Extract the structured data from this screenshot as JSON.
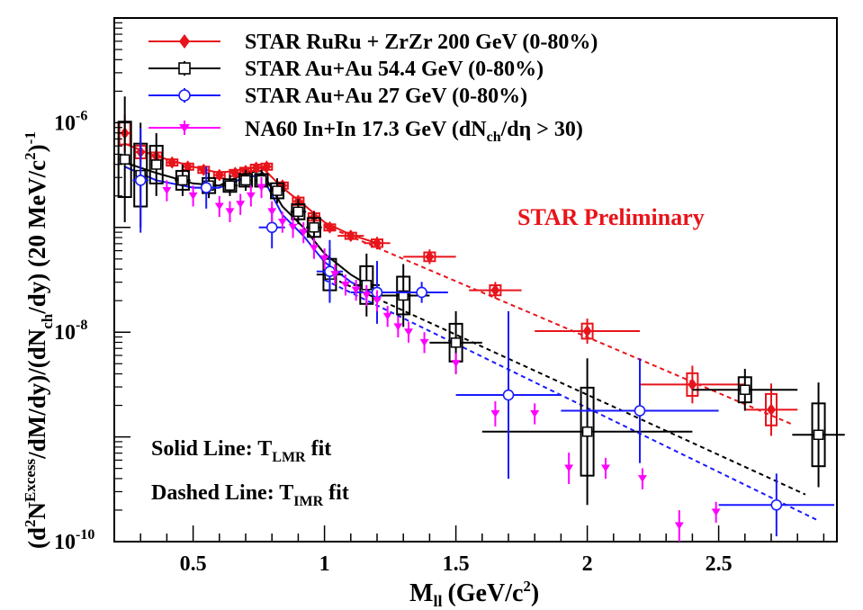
{
  "chart_data": {
    "type": "scatter",
    "xlabel_main": "M",
    "xlabel_sub": "ll",
    "xlabel_units": "(GeV/c",
    "xlabel_sup": "2",
    "xlabel_close": ")",
    "ylabel": {
      "p1": "(d",
      "s1": "2",
      "p2": "N",
      "s2": "Excess",
      "p3": "/dM/dy)/(dN",
      "sub": "ch",
      "p4": "/dy) (20 MeV/c",
      "s3": "2",
      "p5": ")",
      "s4": "-1"
    },
    "xlim": [
      0.2,
      2.95
    ],
    "ylim_log10": [
      -10,
      -5
    ],
    "x_ticks": [
      "0.5",
      "1",
      "1.5",
      "2",
      "2.5"
    ],
    "x_tick_values": [
      0.5,
      1,
      1.5,
      2,
      2.5
    ],
    "y_ticks": [
      {
        "value": -10,
        "base": "10",
        "exp": "-10"
      },
      {
        "value": -8,
        "base": "10",
        "exp": "-8"
      },
      {
        "value": -6,
        "base": "10",
        "exp": "-6"
      }
    ],
    "preliminary_label": "STAR Preliminary",
    "preliminary_color": "#e8141b",
    "annotations": [
      {
        "prefix": "Solid Line: T",
        "sub": "LMR",
        "suffix": " fit"
      },
      {
        "prefix": "Dashed Line: T",
        "sub": "IMR",
        "suffix": " fit"
      }
    ],
    "legend": [
      {
        "text": "STAR RuRu + ZrZr 200 GeV (0-80%)",
        "color": "#e8141b",
        "marker": "diamond"
      },
      {
        "text": "STAR Au+Au 54.4 GeV (0-80%)",
        "color": "#000000",
        "marker": "open-square"
      },
      {
        "text": "STAR Au+Au 27 GeV (0-80%)",
        "color": "#1a1aff",
        "marker": "open-circle"
      },
      {
        "text": "NA60 In+In 17.3 GeV (dN",
        "sub": "ch",
        "tail": "/dη > 30)",
        "color": "#ff00ff",
        "marker": "down-triangle"
      }
    ],
    "series": [
      {
        "name": "STAR RuRu + ZrZr 200 GeV (0-80%)",
        "color": "#e8141b",
        "marker": "diamond",
        "x": [
          0.24,
          0.3,
          0.36,
          0.42,
          0.48,
          0.54,
          0.6,
          0.66,
          0.7,
          0.74,
          0.78,
          0.84,
          0.9,
          0.96,
          1.02,
          1.1,
          1.2,
          1.4,
          1.65,
          2.0,
          2.4,
          2.7
        ],
        "y_log10": [
          -6.1,
          -6.28,
          -6.32,
          -6.38,
          -6.42,
          -6.45,
          -6.5,
          -6.48,
          -6.46,
          -6.43,
          -6.42,
          -6.6,
          -6.75,
          -6.9,
          -7.0,
          -7.08,
          -7.15,
          -7.28,
          -7.6,
          -7.99,
          -8.5,
          -8.74
        ],
        "xerr": [
          0.02,
          0.02,
          0.02,
          0.02,
          0.02,
          0.02,
          0.02,
          0.02,
          0.02,
          0.02,
          0.02,
          0.02,
          0.02,
          0.02,
          0.02,
          0.05,
          0.05,
          0.1,
          0.1,
          0.2,
          0.2,
          0.1
        ],
        "yerr_log10": [
          0.18,
          0.1,
          0.06,
          0.05,
          0.05,
          0.05,
          0.05,
          0.05,
          0.05,
          0.05,
          0.05,
          0.05,
          0.06,
          0.06,
          0.05,
          0.05,
          0.06,
          0.07,
          0.08,
          0.12,
          0.18,
          0.25
        ]
      },
      {
        "name": "STAR Au+Au 54.4 GeV (0-80%)",
        "color": "#000000",
        "marker": "open-square",
        "x": [
          0.24,
          0.3,
          0.36,
          0.46,
          0.56,
          0.64,
          0.7,
          0.76,
          0.82,
          0.9,
          0.96,
          1.02,
          1.16,
          1.3,
          1.5,
          2.0,
          2.6,
          2.88
        ],
        "y_log10": [
          -6.35,
          -6.5,
          -6.4,
          -6.55,
          -6.6,
          -6.6,
          -6.55,
          -6.55,
          -6.65,
          -6.85,
          -7.0,
          -7.45,
          -7.55,
          -7.65,
          -8.1,
          -8.95,
          -8.55,
          -8.98
        ],
        "xerr": [
          0.02,
          0.02,
          0.02,
          0.03,
          0.03,
          0.03,
          0.02,
          0.02,
          0.03,
          0.03,
          0.03,
          0.05,
          0.05,
          0.1,
          0.1,
          0.4,
          0.2,
          0.1
        ],
        "yerr_log10": [
          0.6,
          0.5,
          0.3,
          0.15,
          0.12,
          0.1,
          0.1,
          0.1,
          0.12,
          0.12,
          0.15,
          0.25,
          0.3,
          0.3,
          0.3,
          0.7,
          0.2,
          0.5
        ]
      },
      {
        "name": "STAR Au+Au 27 GeV (0-80%)",
        "color": "#1a1aff",
        "marker": "open-circle",
        "x": [
          0.3,
          0.55,
          0.8,
          1.02,
          1.2,
          1.37,
          1.7,
          2.2,
          2.72
        ],
        "y_log10": [
          -6.55,
          -6.62,
          -7.0,
          -7.42,
          -7.62,
          -7.62,
          -8.6,
          -8.75,
          -9.65
        ],
        "xerr": [
          0.03,
          0.05,
          0.05,
          0.05,
          0.1,
          0.1,
          0.2,
          0.3,
          0.22
        ],
        "yerr_log10": [
          0.5,
          0.2,
          0.2,
          0.3,
          0.3,
          0.1,
          0.8,
          0.5,
          0.3
        ]
      },
      {
        "name": "NA60 In+In 17.3 GeV (dNch/dη > 30)",
        "color": "#ff00ff",
        "marker": "down-triangle",
        "x": [
          0.4,
          0.5,
          0.6,
          0.64,
          0.68,
          0.72,
          0.76,
          0.8,
          0.84,
          0.88,
          0.92,
          0.96,
          1.0,
          1.04,
          1.08,
          1.12,
          1.16,
          1.2,
          1.24,
          1.28,
          1.32,
          1.38,
          1.5,
          1.65,
          1.8,
          1.93,
          2.07,
          2.21,
          2.35,
          2.49
        ],
        "y_log10": [
          -6.65,
          -6.7,
          -6.8,
          -6.85,
          -6.78,
          -6.7,
          -6.62,
          -6.85,
          -6.95,
          -7.0,
          -7.05,
          -7.2,
          -7.3,
          -7.45,
          -7.55,
          -7.6,
          -7.65,
          -7.7,
          -7.85,
          -7.95,
          -8.0,
          -8.1,
          -8.3,
          -8.78,
          -8.78,
          -9.3,
          -9.3,
          -9.4,
          -9.85,
          -9.72
        ],
        "yerr_log10": [
          0.1,
          0.1,
          0.1,
          0.1,
          0.1,
          0.1,
          0.1,
          0.1,
          0.1,
          0.1,
          0.1,
          0.1,
          0.1,
          0.1,
          0.1,
          0.1,
          0.1,
          0.1,
          0.1,
          0.1,
          0.1,
          0.1,
          0.1,
          0.12,
          0.1,
          0.15,
          0.1,
          0.1,
          0.15,
          0.1
        ]
      }
    ],
    "fit_lines": [
      {
        "style": "dashed",
        "color": "#e8141b",
        "x": [
          1.0,
          2.78
        ],
        "y_log10": [
          -6.98,
          -8.88
        ]
      },
      {
        "style": "dashed",
        "color": "#000000",
        "x": [
          1.0,
          2.83
        ],
        "y_log10": [
          -7.45,
          -9.55
        ]
      },
      {
        "style": "dashed",
        "color": "#1a1aff",
        "x": [
          1.0,
          2.88
        ],
        "y_log10": [
          -7.5,
          -9.8
        ]
      },
      {
        "style": "solid",
        "color": "#000000",
        "x": [
          0.24,
          0.36,
          0.5,
          0.6,
          0.7,
          0.76,
          0.84,
          0.92,
          1.0,
          1.1,
          1.2
        ],
        "y_log10": [
          -6.38,
          -6.48,
          -6.58,
          -6.6,
          -6.48,
          -6.46,
          -6.8,
          -7.0,
          -7.25,
          -7.45,
          -7.6
        ]
      },
      {
        "style": "solid",
        "color": "#1a1aff",
        "x": [
          0.24,
          0.36,
          0.5,
          0.6,
          0.7,
          0.76,
          0.84,
          0.92,
          1.0,
          1.1,
          1.2
        ],
        "y_log10": [
          -6.42,
          -6.55,
          -6.62,
          -6.62,
          -6.52,
          -6.5,
          -6.88,
          -7.08,
          -7.33,
          -7.52,
          -7.65
        ]
      },
      {
        "style": "solid",
        "color": "#e8141b",
        "x": [
          0.24,
          0.36,
          0.5,
          0.6,
          0.7,
          0.76,
          0.84,
          0.92,
          1.0,
          1.1,
          1.2
        ],
        "y_log10": [
          -6.2,
          -6.32,
          -6.42,
          -6.48,
          -6.44,
          -6.42,
          -6.62,
          -6.78,
          -6.95,
          -7.07,
          -7.15
        ]
      }
    ]
  }
}
